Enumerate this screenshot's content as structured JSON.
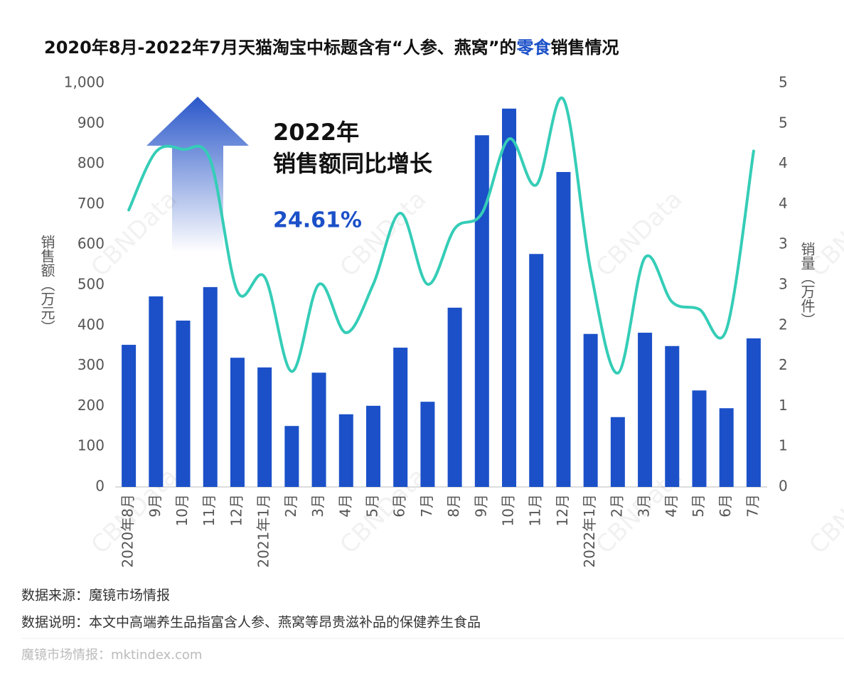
{
  "chart_data": {
    "type": "bar_line",
    "title": [
      "2020年8月-2022年7月天猫淘宝中标题含有“人参、燕窝”的",
      "零食",
      "销售情况"
    ],
    "title_colors": [
      "#111111",
      "#1b50c8",
      "#111111"
    ],
    "ylabel": "销售额（万元）",
    "y2label": "销量（万件）",
    "annotation": [
      "2022年",
      "销售额同比增长",
      "24.61%"
    ],
    "categories": [
      "2020年8月",
      "9月",
      "10月",
      "11月",
      "12月",
      "2021年1月",
      "2月",
      "3月",
      "4月",
      "5月",
      "6月",
      "7月",
      "8月",
      "9月",
      "10月",
      "11月",
      "12月",
      "2022年1月",
      "2月",
      "3月",
      "4月",
      "5月",
      "6月",
      "7月"
    ],
    "series": [
      {
        "name": "销售额",
        "type": "bar",
        "color": "#1b50c8",
        "values": [
          352,
          472,
          412,
          495,
          320,
          296,
          151,
          283,
          180,
          201,
          345,
          211,
          444,
          871,
          937,
          577,
          780,
          379,
          173,
          382,
          349,
          239,
          195,
          368
        ]
      },
      {
        "name": "销量",
        "type": "line",
        "axis": "y2",
        "color": "#35cdb7",
        "values": [
          3.43,
          4.15,
          4.18,
          4.05,
          2.42,
          2.6,
          1.43,
          2.51,
          1.91,
          2.51,
          3.39,
          2.51,
          3.2,
          3.39,
          4.31,
          3.74,
          4.8,
          2.68,
          1.41,
          2.84,
          2.29,
          2.2,
          1.95,
          4.16
        ]
      }
    ],
    "ylim": [
      0,
      1000
    ],
    "yticks": [
      0,
      100,
      200,
      300,
      400,
      500,
      600,
      700,
      800,
      900,
      {
        "value": 1000,
        "label": "1,000"
      }
    ],
    "y2lim": [
      0,
      5
    ],
    "y2ticks": [
      0,
      {
        "value": 0.5,
        "label": "1"
      },
      1,
      {
        "value": 1.5,
        "label": "2"
      },
      2,
      {
        "value": 2.5,
        "label": "3"
      },
      3,
      {
        "value": 3.5,
        "label": "4"
      },
      4,
      {
        "value": 4.5,
        "label": "5"
      },
      5
    ],
    "grid": false,
    "watermark": "CBNData",
    "footnotes": [
      "数据来源：魔镜市场情报",
      "数据说明：本文中高端养生品指富含人参、燕窝等昂贵滋补品的保健养生食品"
    ],
    "source": "魔镜市场情报：mktindex.com"
  }
}
